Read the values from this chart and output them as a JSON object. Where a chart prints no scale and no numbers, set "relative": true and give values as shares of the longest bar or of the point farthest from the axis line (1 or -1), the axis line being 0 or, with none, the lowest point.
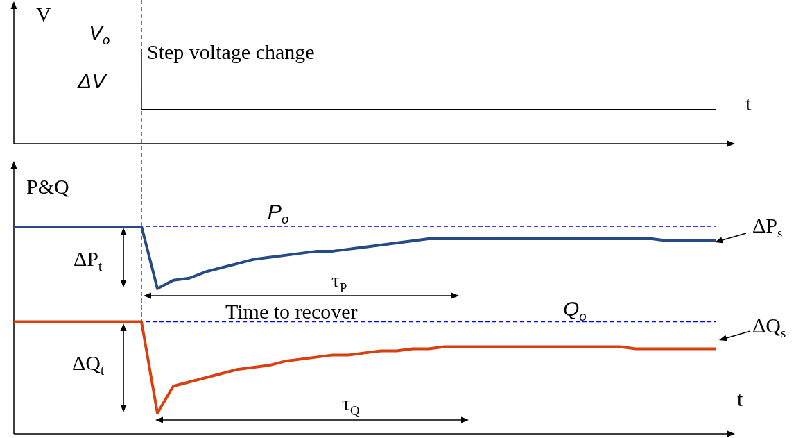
{
  "chart_data": [
    {
      "type": "step",
      "ylabel": "V",
      "xlabel": "t",
      "relative": true,
      "categories": [
        null,
        null,
        null,
        null,
        null,
        null,
        null,
        null,
        null,
        null,
        null,
        null,
        null,
        null,
        null,
        null,
        null,
        null,
        null,
        null,
        null,
        null,
        null,
        null,
        null,
        null,
        null,
        null,
        null,
        null,
        null,
        null,
        null,
        null,
        null,
        null,
        null,
        null,
        null,
        null,
        null,
        null,
        null,
        null,
        null
      ],
      "series": [
        {
          "color": "#000000",
          "values": [
            1,
            1,
            1,
            1,
            1,
            1,
            1,
            1,
            1,
            0.36,
            0.36,
            0.36,
            0.36,
            0.36,
            0.36,
            0.36,
            0.36,
            0.36,
            0.36,
            0.36,
            0.36,
            0.36,
            0.36,
            0.36,
            0.36,
            0.36,
            0.36,
            0.36,
            0.36,
            0.36,
            0.36,
            0.36,
            0.36,
            0.36,
            0.36,
            0.36,
            0.36,
            0.36,
            0.36,
            0.36,
            0.36,
            0.36,
            0.36,
            0.36,
            0.36
          ]
        }
      ],
      "annotations": [
        "V$_{o}$",
        "ΔV",
        "Step voltage change"
      ]
    },
    {
      "type": "line",
      "ylabel": "P&Q",
      "xlabel": "t",
      "relative": true,
      "categories": [
        null,
        null,
        null,
        null,
        null,
        null,
        null,
        null,
        null,
        null,
        null,
        null,
        null,
        null,
        null,
        null,
        null,
        null,
        null,
        null,
        null,
        null,
        null,
        null,
        null,
        null,
        null,
        null,
        null,
        null,
        null,
        null,
        null,
        null,
        null,
        null,
        null,
        null,
        null,
        null,
        null,
        null,
        null,
        null,
        null
      ],
      "series": [
        {
          "color": "#254a85",
          "values": [
            1,
            1,
            1,
            1,
            1,
            1,
            1,
            1,
            1,
            0.7,
            0.74,
            0.75,
            0.78,
            0.8,
            0.82,
            0.84,
            0.85,
            0.86,
            0.87,
            0.88,
            0.88,
            0.89,
            0.9,
            0.91,
            0.92,
            0.93,
            0.94,
            0.94,
            0.94,
            0.94,
            0.94,
            0.94,
            0.94,
            0.94,
            0.94,
            0.94,
            0.94,
            0.94,
            0.94,
            0.94,
            0.94,
            0.93,
            0.93,
            0.93,
            0.93
          ]
        },
        {
          "color": "#d9400f",
          "values": [
            0.54,
            0.54,
            0.54,
            0.54,
            0.54,
            0.54,
            0.54,
            0.54,
            0.54,
            0.1,
            0.23,
            0.25,
            0.27,
            0.29,
            0.31,
            0.32,
            0.33,
            0.35,
            0.36,
            0.37,
            0.38,
            0.38,
            0.39,
            0.4,
            0.4,
            0.41,
            0.41,
            0.42,
            0.42,
            0.42,
            0.42,
            0.42,
            0.42,
            0.42,
            0.42,
            0.42,
            0.42,
            0.42,
            0.42,
            0.41,
            0.41,
            0.41,
            0.41,
            0.41,
            0.41
          ]
        }
      ],
      "ref_lines": [
        {
          "axis": "y",
          "value": 1,
          "label": "P$_{o}$",
          "color": "#0000ff",
          "line_style": "dashed"
        },
        {
          "axis": "y",
          "value": 0.54,
          "label": "Q$_{o}$",
          "color": "#0000ff",
          "line_style": "dashed"
        }
      ],
      "annotations": [
        "ΔP$_{t}$",
        "τ$_{P}$",
        "Time to recover",
        "ΔQ$_{t}$",
        "τ$_{Q}$",
        "ΔP$_{s}$",
        "ΔQ$_{s}$"
      ]
    }
  ]
}
